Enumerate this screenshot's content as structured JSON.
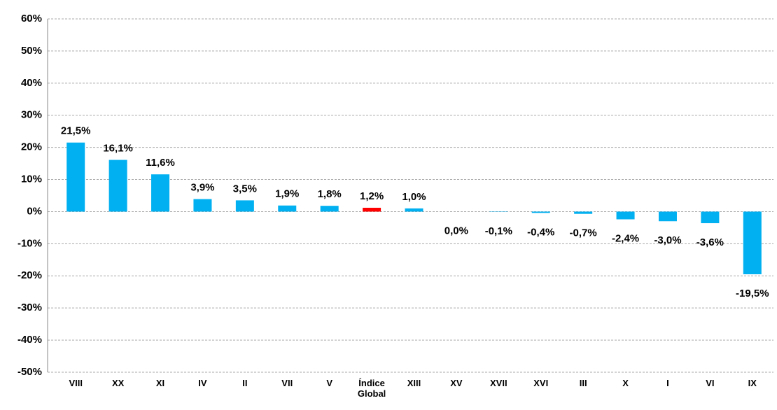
{
  "chart_data": {
    "type": "bar",
    "categories": [
      "VIII",
      "XX",
      "XI",
      "IV",
      "II",
      "VII",
      "V",
      "Índice Global",
      "XIII",
      "XV",
      "XVII",
      "XVI",
      "III",
      "X",
      "I",
      "VI",
      "IX"
    ],
    "values": [
      21.5,
      16.1,
      11.6,
      3.9,
      3.5,
      1.9,
      1.8,
      1.2,
      1.0,
      0.0,
      -0.1,
      -0.4,
      -0.7,
      -2.4,
      -3.0,
      -3.6,
      -19.5
    ],
    "value_labels": [
      "21,5%",
      "16,1%",
      "11,6%",
      "3,9%",
      "3,5%",
      "1,9%",
      "1,8%",
      "1,2%",
      "1,0%",
      "0,0%",
      "-0,1%",
      "-0,4%",
      "-0,7%",
      "-2,4%",
      "-3,0%",
      "-3,6%",
      "-19,5%"
    ],
    "colors": [
      "#00b0f0",
      "#00b0f0",
      "#00b0f0",
      "#00b0f0",
      "#00b0f0",
      "#00b0f0",
      "#00b0f0",
      "#ff0000",
      "#00b0f0",
      "#00b0f0",
      "#00b0f0",
      "#00b0f0",
      "#00b0f0",
      "#00b0f0",
      "#00b0f0",
      "#00b0f0",
      "#00b0f0"
    ],
    "ylim": [
      -50,
      60
    ],
    "yticks": [
      {
        "value": -50,
        "label": "-50%"
      },
      {
        "value": -40,
        "label": "-40%"
      },
      {
        "value": -30,
        "label": "-30%"
      },
      {
        "value": -20,
        "label": "-20%"
      },
      {
        "value": -10,
        "label": "-10%"
      },
      {
        "value": 0,
        "label": "0%"
      },
      {
        "value": 10,
        "label": "10%"
      },
      {
        "value": 20,
        "label": "20%"
      },
      {
        "value": 30,
        "label": "30%"
      },
      {
        "value": 40,
        "label": "40%"
      },
      {
        "value": 50,
        "label": "50%"
      },
      {
        "value": 60,
        "label": "60%"
      }
    ],
    "grid": true
  }
}
